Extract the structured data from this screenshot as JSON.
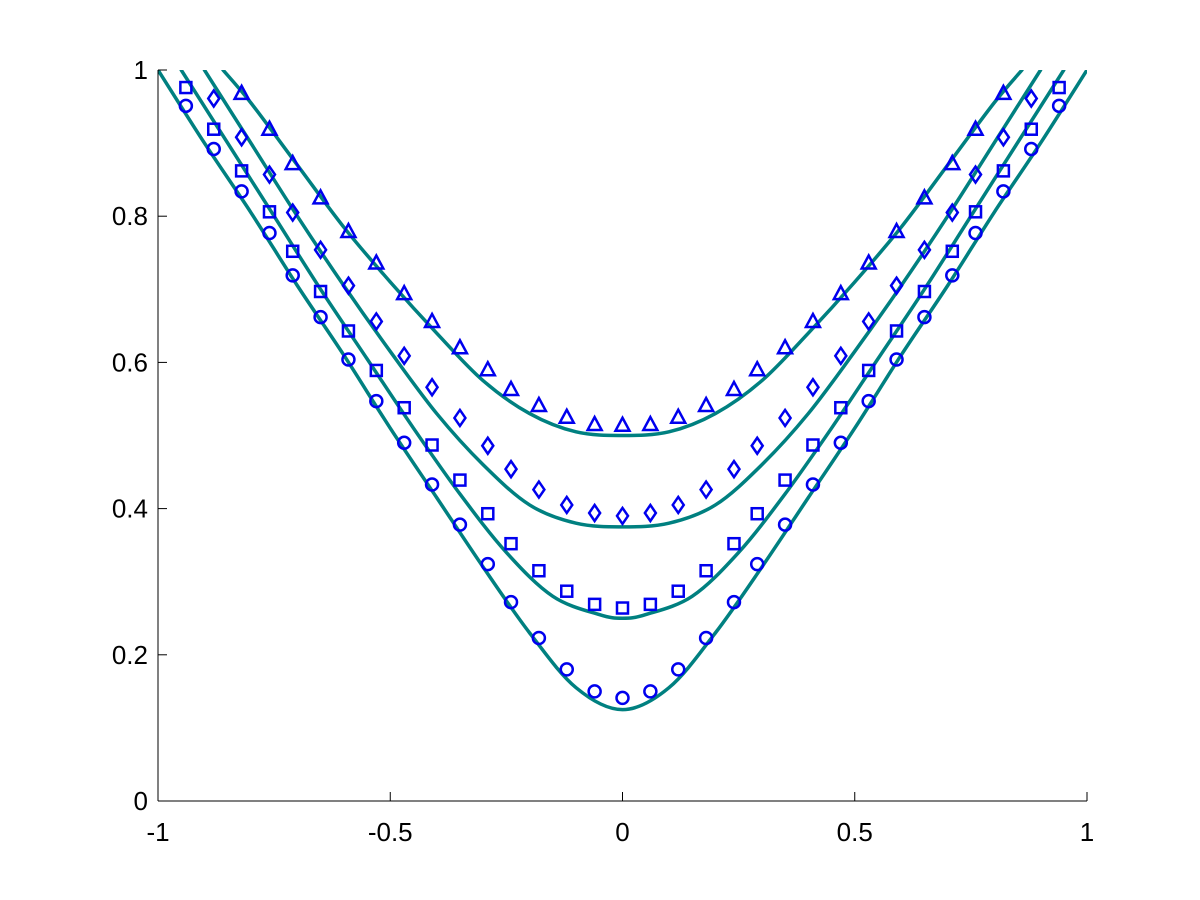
{
  "colors": {
    "line": "#008080",
    "marker": "#0000ee",
    "axis": "#000000",
    "background": "#ffffff"
  },
  "chart_data": {
    "type": "scatter",
    "title": "",
    "xlabel": "",
    "ylabel": "",
    "xlim": [
      -1,
      1
    ],
    "ylim": [
      0,
      1
    ],
    "grid": false,
    "box": false,
    "x_ticks": [
      -1,
      -0.5,
      0,
      0.5,
      1
    ],
    "y_ticks": [
      0,
      0.2,
      0.4,
      0.6,
      0.8,
      1
    ],
    "x_tick_labels": [
      "-1",
      "-0.5",
      "0",
      "0.5",
      "1"
    ],
    "y_tick_labels": [
      "0",
      "0.2",
      "0.4",
      "0.6",
      "0.8",
      "1"
    ],
    "lines": [
      {
        "x": [
          -1,
          -0.9,
          -0.8,
          -0.7,
          -0.6,
          -0.5,
          -0.4,
          -0.3,
          -0.2,
          -0.1,
          0,
          0.1,
          0.2,
          0.3,
          0.4,
          0.5,
          0.6,
          0.7,
          0.8,
          0.9,
          1
        ],
        "y": [
          1.0,
          0.9,
          0.805,
          0.705,
          0.61,
          0.51,
          0.415,
          0.32,
          0.23,
          0.155,
          0.125,
          0.155,
          0.23,
          0.32,
          0.415,
          0.51,
          0.61,
          0.705,
          0.805,
          0.9,
          1.0
        ]
      },
      {
        "x": [
          -0.95,
          -0.85,
          -0.75,
          -0.65,
          -0.55,
          -0.45,
          -0.35,
          -0.25,
          -0.15,
          -0.05,
          0,
          0.05,
          0.15,
          0.25,
          0.35,
          0.45,
          0.55,
          0.65,
          0.75,
          0.85,
          0.95
        ],
        "y": [
          1.0,
          0.9,
          0.8,
          0.7,
          0.605,
          0.51,
          0.42,
          0.34,
          0.28,
          0.255,
          0.25,
          0.255,
          0.28,
          0.34,
          0.42,
          0.51,
          0.605,
          0.7,
          0.8,
          0.9,
          1.0
        ]
      },
      {
        "x": [
          -0.9,
          -0.8,
          -0.7,
          -0.6,
          -0.5,
          -0.4,
          -0.3,
          -0.2,
          -0.1,
          0,
          0.1,
          0.2,
          0.3,
          0.4,
          0.5,
          0.6,
          0.7,
          0.8,
          0.9
        ],
        "y": [
          1.0,
          0.9,
          0.8,
          0.705,
          0.615,
          0.53,
          0.46,
          0.405,
          0.38,
          0.375,
          0.38,
          0.405,
          0.46,
          0.53,
          0.615,
          0.705,
          0.8,
          0.9,
          1.0
        ]
      },
      {
        "x": [
          -0.86,
          -0.8,
          -0.7,
          -0.6,
          -0.5,
          -0.4,
          -0.3,
          -0.2,
          -0.1,
          0,
          0.1,
          0.2,
          0.3,
          0.4,
          0.5,
          0.6,
          0.7,
          0.8,
          0.86
        ],
        "y": [
          1.0,
          0.955,
          0.87,
          0.785,
          0.71,
          0.64,
          0.575,
          0.53,
          0.505,
          0.5,
          0.505,
          0.53,
          0.575,
          0.64,
          0.71,
          0.785,
          0.87,
          0.955,
          1.0
        ]
      }
    ],
    "series": [
      {
        "marker": "circle",
        "x": [
          -0.94,
          -0.88,
          -0.82,
          -0.76,
          -0.71,
          -0.65,
          -0.59,
          -0.53,
          -0.47,
          -0.41,
          -0.35,
          -0.29,
          -0.24,
          -0.18,
          -0.12,
          -0.06,
          0,
          0.06,
          0.12,
          0.18,
          0.24,
          0.29,
          0.35,
          0.41,
          0.47,
          0.53,
          0.59,
          0.65,
          0.71,
          0.76,
          0.82,
          0.88,
          0.94
        ],
        "y": [
          0.951,
          0.892,
          0.834,
          0.777,
          0.719,
          0.662,
          0.604,
          0.547,
          0.49,
          0.433,
          0.378,
          0.324,
          0.272,
          0.223,
          0.18,
          0.15,
          0.141,
          0.15,
          0.18,
          0.223,
          0.272,
          0.324,
          0.378,
          0.433,
          0.49,
          0.547,
          0.604,
          0.662,
          0.719,
          0.777,
          0.834,
          0.892,
          0.951
        ]
      },
      {
        "marker": "square",
        "x": [
          -0.94,
          -0.88,
          -0.82,
          -0.76,
          -0.71,
          -0.65,
          -0.59,
          -0.53,
          -0.47,
          -0.41,
          -0.35,
          -0.29,
          -0.24,
          -0.18,
          -0.12,
          -0.06,
          0,
          0.06,
          0.12,
          0.18,
          0.24,
          0.29,
          0.35,
          0.41,
          0.47,
          0.53,
          0.59,
          0.65,
          0.71,
          0.76,
          0.82,
          0.88,
          0.94
        ],
        "y": [
          0.976,
          0.919,
          0.862,
          0.806,
          0.752,
          0.697,
          0.643,
          0.589,
          0.538,
          0.487,
          0.439,
          0.393,
          0.352,
          0.315,
          0.287,
          0.269,
          0.264,
          0.269,
          0.287,
          0.315,
          0.352,
          0.393,
          0.439,
          0.487,
          0.538,
          0.589,
          0.643,
          0.697,
          0.752,
          0.806,
          0.862,
          0.919,
          0.976
        ]
      },
      {
        "marker": "diamond",
        "x": [
          -0.88,
          -0.82,
          -0.76,
          -0.71,
          -0.65,
          -0.59,
          -0.53,
          -0.47,
          -0.41,
          -0.35,
          -0.29,
          -0.24,
          -0.18,
          -0.12,
          -0.06,
          0,
          0.06,
          0.12,
          0.18,
          0.24,
          0.29,
          0.35,
          0.41,
          0.47,
          0.53,
          0.59,
          0.65,
          0.71,
          0.76,
          0.82,
          0.88
        ],
        "y": [
          0.961,
          0.908,
          0.857,
          0.805,
          0.754,
          0.705,
          0.656,
          0.609,
          0.566,
          0.524,
          0.486,
          0.454,
          0.426,
          0.405,
          0.394,
          0.39,
          0.394,
          0.405,
          0.426,
          0.454,
          0.486,
          0.524,
          0.566,
          0.609,
          0.656,
          0.705,
          0.754,
          0.805,
          0.857,
          0.908,
          0.961
        ]
      },
      {
        "marker": "triangle",
        "x": [
          -0.82,
          -0.76,
          -0.71,
          -0.65,
          -0.59,
          -0.53,
          -0.47,
          -0.41,
          -0.35,
          -0.29,
          -0.24,
          -0.18,
          -0.12,
          -0.06,
          0,
          0.06,
          0.12,
          0.18,
          0.24,
          0.29,
          0.35,
          0.41,
          0.47,
          0.53,
          0.59,
          0.65,
          0.71,
          0.76,
          0.82
        ],
        "y": [
          0.968,
          0.919,
          0.872,
          0.825,
          0.779,
          0.736,
          0.694,
          0.656,
          0.62,
          0.59,
          0.563,
          0.541,
          0.525,
          0.515,
          0.514,
          0.515,
          0.525,
          0.541,
          0.563,
          0.59,
          0.62,
          0.656,
          0.694,
          0.736,
          0.779,
          0.825,
          0.872,
          0.919,
          0.968
        ]
      }
    ]
  }
}
